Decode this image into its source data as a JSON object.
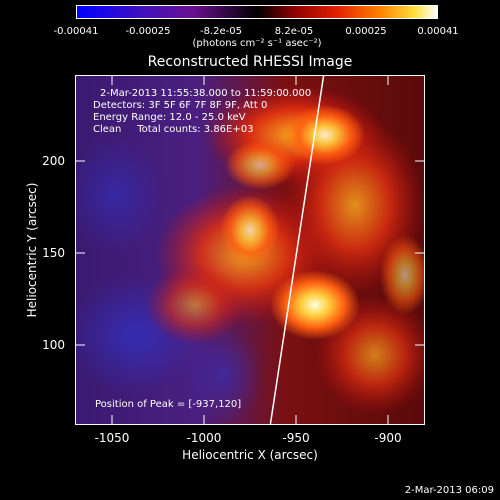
{
  "colorbar": {
    "ticks": [
      "-0.00041",
      "-0.00025",
      "-8.2e-05",
      "8.2e-05",
      "0.00025",
      "0.00041"
    ],
    "units": "(photons cm⁻² s⁻¹ asec⁻²)"
  },
  "title": "Reconstructed RHESSI Image",
  "info": {
    "time": "2-Mar-2013 11:55:38.000 to 11:59:00.000",
    "detectors": "Detectors: 3F 5F 6F 7F 8F 9F, Att 0",
    "energy": "Energy Range: 12.0 - 25.0 keV",
    "clean": "Clean     Total counts: 3.86E+03",
    "peak": "Position of Peak = [-937,120]"
  },
  "axes": {
    "xlabel": "Heliocentric X (arcsec)",
    "ylabel": "Heliocentric Y (arcsec)",
    "xticks": [
      "-1050",
      "-1000",
      "-950",
      "-900"
    ],
    "yticks": [
      "200",
      "150",
      "100"
    ],
    "xlim": [
      -1070,
      -880
    ],
    "ylim": [
      55,
      245
    ]
  },
  "footer": "2-Mar-2013 06:09",
  "limb_line": {
    "x_start": -964,
    "y_start": 55,
    "x_end": -935,
    "y_end": 245
  },
  "peak": {
    "x": -937,
    "y": 120
  },
  "colors": {
    "limb": "#ffffff"
  }
}
